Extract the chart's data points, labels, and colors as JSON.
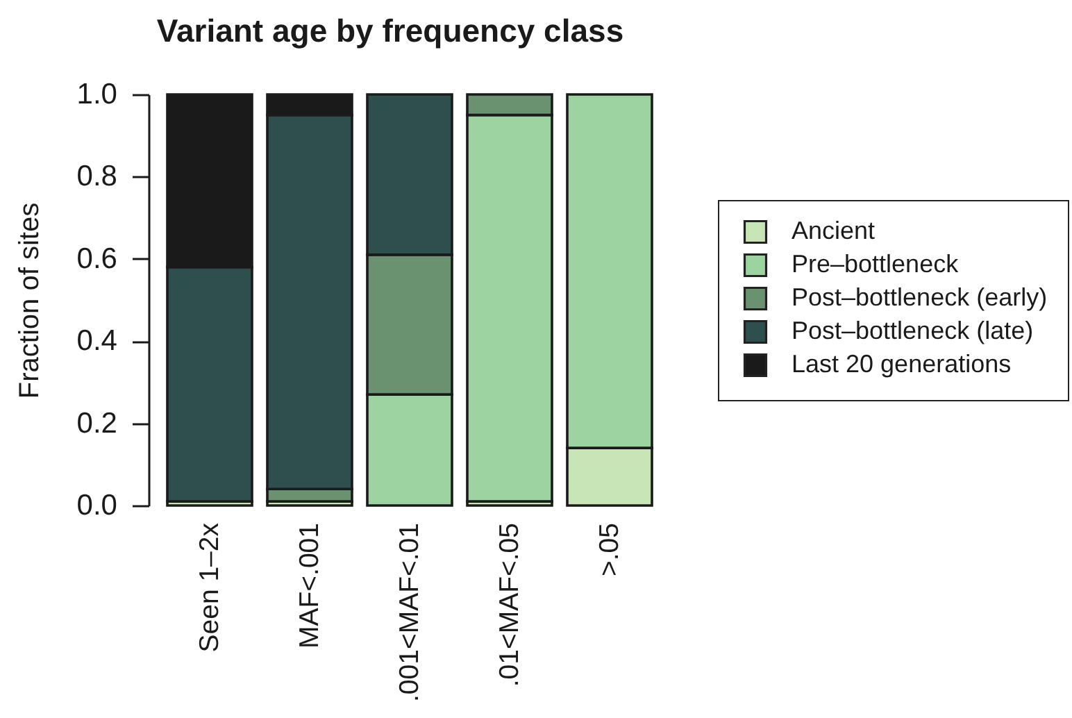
{
  "chart_data": {
    "type": "bar",
    "title": "Variant age by frequency class",
    "ylabel": "Fraction of sites",
    "categories": [
      "Seen 1–2x",
      "MAF<.001",
      ".001<MAF<.01",
      ".01<MAF<.05",
      ">.05"
    ],
    "stacked": true,
    "series": [
      {
        "name": "Ancient",
        "color": "#c8e5b8",
        "values": [
          0.01,
          0.01,
          null,
          0.01,
          0.14
        ]
      },
      {
        "name": "Pre–bottleneck",
        "color": "#9dd3a0",
        "values": [
          null,
          null,
          0.27,
          0.94,
          0.86
        ]
      },
      {
        "name": "Post–bottleneck (early)",
        "color": "#6a9170",
        "values": [
          null,
          0.03,
          0.34,
          0.05,
          null
        ]
      },
      {
        "name": "Post–bottleneck (late)",
        "color": "#2f4f4f",
        "values": [
          0.57,
          0.91,
          0.39,
          null,
          null
        ]
      },
      {
        "name": "Last 20 generations",
        "color": "#1a1a1a",
        "values": [
          0.42,
          0.05,
          null,
          null,
          null
        ]
      }
    ],
    "ylim": [
      0,
      1
    ],
    "yticks": [
      {
        "value": 0,
        "label": "0.0"
      },
      0.2,
      0.4,
      0.6,
      0.8,
      {
        "value": 1,
        "label": "1.0"
      }
    ],
    "legend": "right",
    "grid": false
  }
}
